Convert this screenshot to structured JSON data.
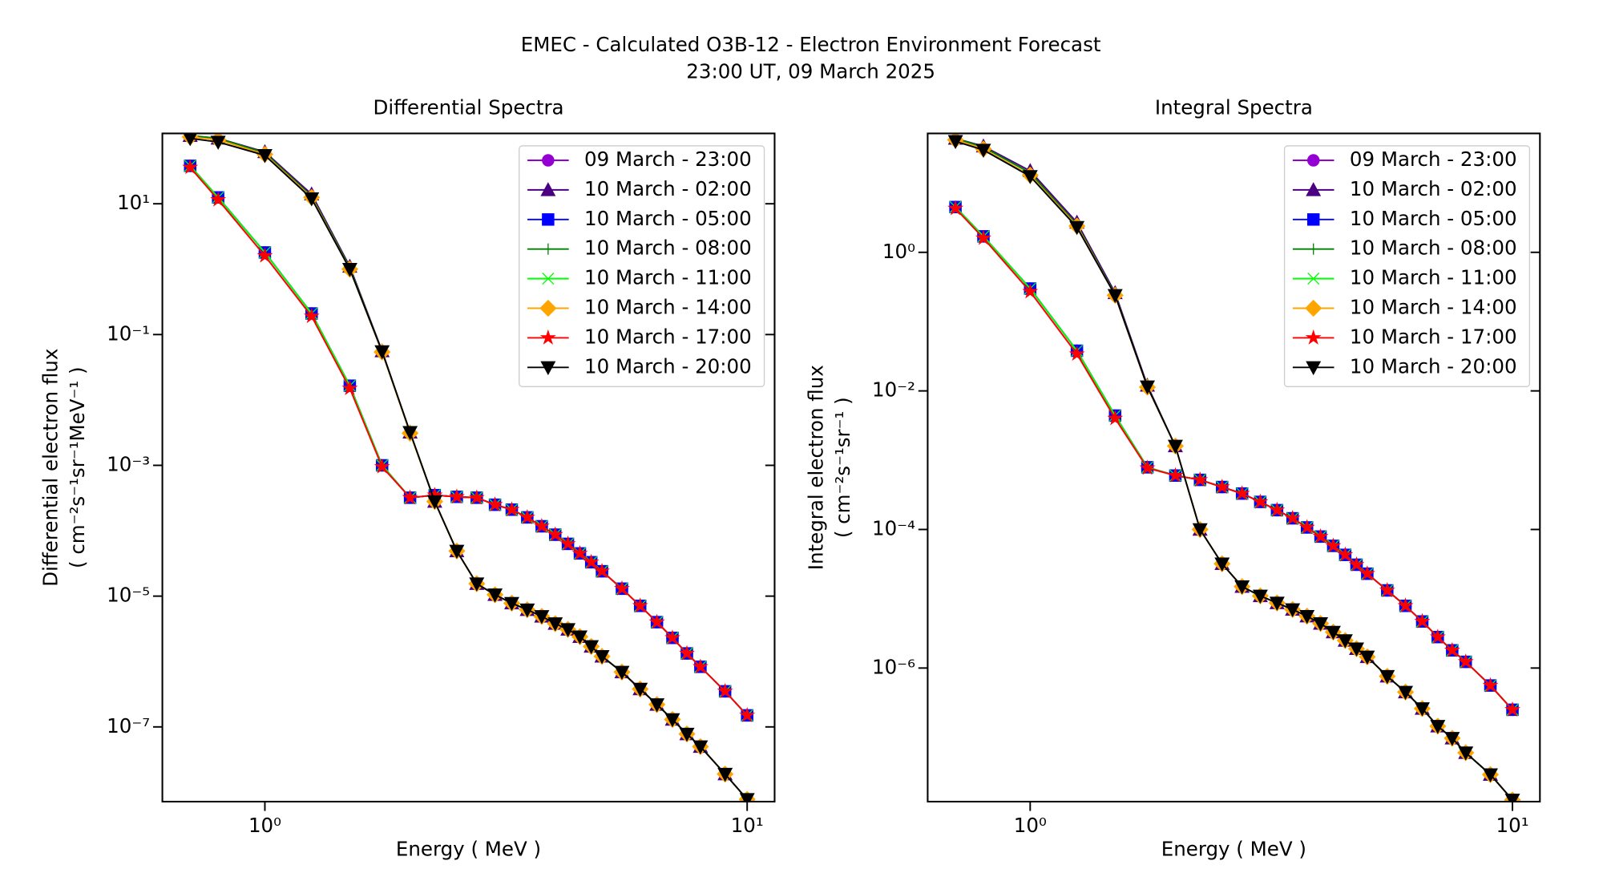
{
  "title": "EMEC - Calculated O3B-12 - Electron Environment Forecast",
  "subtitle": "23:00 UT, 09 March 2025",
  "chart_data": [
    {
      "type": "line",
      "title": "Differential Spectra",
      "xlabel": "Energy ( MeV )",
      "ylabel": [
        "Differential electron flux",
        "( cm⁻²s⁻¹sr⁻¹MeV⁻¹ )"
      ],
      "xscale": "log",
      "yscale": "log",
      "legend": "upper right",
      "xlim": [
        0.613,
        11.4
      ],
      "ylim": [
        7.2e-09,
        119
      ],
      "xticks": [
        {
          "value": 1,
          "label": "10⁰"
        },
        {
          "value": 10,
          "label": "10¹"
        }
      ],
      "yticks": [
        {
          "value": 10,
          "label": "10¹"
        },
        {
          "value": 0.1,
          "label": "10⁻¹"
        },
        {
          "value": 0.001,
          "label": "10⁻³"
        },
        {
          "value": 1e-05,
          "label": "10⁻⁵"
        },
        {
          "value": 1e-07,
          "label": "10⁻⁷"
        }
      ],
      "x": [
        0.7,
        0.8,
        1.0,
        1.25,
        1.5,
        1.75,
        2.0,
        2.25,
        2.5,
        2.75,
        3.0,
        3.25,
        3.5,
        3.75,
        4.0,
        4.25,
        4.5,
        4.75,
        5.0,
        5.5,
        6.0,
        6.5,
        7.0,
        7.5,
        8.0,
        9.0,
        10.0
      ],
      "series": [
        {
          "name": "09 March - 23:00",
          "color": "#9400d3",
          "marker": "circle",
          "values": [
            38,
            12.5,
            1.8,
            0.21,
            0.0165,
            0.001,
            0.00032,
            0.00035,
            0.00033,
            0.00032,
            0.00025,
            0.00021,
            0.00016,
            0.000117,
            8.7e-05,
            6.3e-05,
            4.5e-05,
            3.3e-05,
            2.4e-05,
            1.3e-05,
            7.1e-06,
            4e-06,
            2.3e-06,
            1.33e-06,
            8.3e-07,
            3.5e-07,
            1.5e-07
          ]
        },
        {
          "name": "10 March - 02:00",
          "color": "#4b0082",
          "marker": "triangle-up",
          "values": [
            110,
            100,
            62,
            14,
            1.1,
            0.056,
            0.0032,
            0.00028,
            4.9e-05,
            1.55e-05,
            1.05e-05,
            7.8e-06,
            6.2e-06,
            4.9e-06,
            3.8e-06,
            3.1e-06,
            2.4e-06,
            1.7e-06,
            1.2e-06,
            6.9e-07,
            3.8e-07,
            2.2e-07,
            1.3e-07,
            7.8e-08,
            5e-08,
            1.9e-08,
            7.8e-09
          ]
        },
        {
          "name": "10 March - 05:00",
          "color": "#0000ff",
          "marker": "square",
          "values": [
            38,
            12.5,
            1.8,
            0.21,
            0.0165,
            0.001,
            0.00032,
            0.00035,
            0.00033,
            0.00032,
            0.00025,
            0.00021,
            0.00016,
            0.000117,
            8.7e-05,
            6.3e-05,
            4.5e-05,
            3.3e-05,
            2.4e-05,
            1.3e-05,
            7.1e-06,
            4e-06,
            2.3e-06,
            1.33e-06,
            8.3e-07,
            3.5e-07,
            1.5e-07
          ]
        },
        {
          "name": "10 March - 08:00",
          "color": "#008000",
          "marker": "plus",
          "values": [
            110,
            100,
            60,
            13,
            1.05,
            0.055,
            0.0032,
            0.00028,
            4.9e-05,
            1.55e-05,
            1.05e-05,
            7.8e-06,
            6.2e-06,
            4.9e-06,
            3.8e-06,
            3.1e-06,
            2.4e-06,
            1.7e-06,
            1.2e-06,
            6.9e-07,
            3.8e-07,
            2.2e-07,
            1.3e-07,
            7.8e-08,
            5e-08,
            1.9e-08,
            7.8e-09
          ]
        },
        {
          "name": "10 March - 11:00",
          "color": "#00ff00",
          "marker": "x",
          "values": [
            38,
            12.5,
            1.8,
            0.21,
            0.0165,
            0.001,
            0.00032,
            0.00035,
            0.00033,
            0.00032,
            0.00025,
            0.00021,
            0.00016,
            0.000117,
            8.7e-05,
            6.3e-05,
            4.5e-05,
            3.3e-05,
            2.4e-05,
            1.3e-05,
            7.1e-06,
            4e-06,
            2.3e-06,
            1.33e-06,
            8.3e-07,
            3.5e-07,
            1.5e-07
          ]
        },
        {
          "name": "10 March - 14:00",
          "color": "#ffa500",
          "marker": "diamond",
          "values": [
            105,
            95,
            57,
            12.5,
            1.0,
            0.054,
            0.0031,
            0.00028,
            4.9e-05,
            1.55e-05,
            1.05e-05,
            7.8e-06,
            6.2e-06,
            4.9e-06,
            3.8e-06,
            3.1e-06,
            2.4e-06,
            1.7e-06,
            1.2e-06,
            6.9e-07,
            3.8e-07,
            2.2e-07,
            1.3e-07,
            7.8e-08,
            5e-08,
            1.9e-08,
            7.8e-09
          ]
        },
        {
          "name": "10 March - 17:00",
          "color": "#ff0000",
          "marker": "star",
          "values": [
            36,
            11.5,
            1.6,
            0.19,
            0.015,
            0.00095,
            0.00032,
            0.00035,
            0.00033,
            0.00032,
            0.00025,
            0.00021,
            0.00016,
            0.000117,
            8.7e-05,
            6.3e-05,
            4.5e-05,
            3.3e-05,
            2.4e-05,
            1.3e-05,
            7.1e-06,
            4e-06,
            2.3e-06,
            1.33e-06,
            8.3e-07,
            3.5e-07,
            1.5e-07
          ]
        },
        {
          "name": "10 March - 20:00",
          "color": "#000000",
          "marker": "triangle-down",
          "values": [
            100,
            88,
            55,
            12,
            1.0,
            0.055,
            0.0032,
            0.00028,
            4.9e-05,
            1.55e-05,
            1.05e-05,
            7.8e-06,
            6.2e-06,
            4.9e-06,
            3.8e-06,
            3.1e-06,
            2.4e-06,
            1.7e-06,
            1.2e-06,
            6.9e-07,
            3.8e-07,
            2.2e-07,
            1.3e-07,
            7.8e-08,
            5e-08,
            1.9e-08,
            7.8e-09
          ]
        }
      ]
    },
    {
      "type": "line",
      "title": "Integral Spectra",
      "xlabel": "Energy ( MeV )",
      "ylabel": [
        "Integral electron flux",
        "( cm⁻²s⁻¹sr⁻¹ )"
      ],
      "xscale": "log",
      "yscale": "log",
      "legend": "upper right",
      "xlim": [
        0.613,
        11.4
      ],
      "ylim": [
        1.18e-08,
        52
      ],
      "xticks": [
        {
          "value": 1,
          "label": "10⁰"
        },
        {
          "value": 10,
          "label": "10¹"
        }
      ],
      "yticks": [
        {
          "value": 1,
          "label": "10⁰"
        },
        {
          "value": 0.01,
          "label": "10⁻²"
        },
        {
          "value": 0.0001,
          "label": "10⁻⁴"
        },
        {
          "value": 1e-06,
          "label": "10⁻⁶"
        }
      ],
      "x": [
        0.7,
        0.8,
        1.0,
        1.25,
        1.5,
        1.75,
        2.0,
        2.25,
        2.5,
        2.75,
        3.0,
        3.25,
        3.5,
        3.75,
        4.0,
        4.25,
        4.5,
        4.75,
        5.0,
        5.5,
        6.0,
        6.5,
        7.0,
        7.5,
        8.0,
        9.0,
        10.0
      ],
      "series": [
        {
          "name": "09 March - 23:00",
          "color": "#9400d3",
          "marker": "circle",
          "values": [
            4.5,
            1.7,
            0.3,
            0.038,
            0.0044,
            0.00079,
            0.0006,
            0.00052,
            0.00041,
            0.00033,
            0.00025,
            0.00019,
            0.000145,
            0.000107,
            7.9e-05,
            5.8e-05,
            4.3e-05,
            3.1e-05,
            2.3e-05,
            1.32e-05,
            7.9e-06,
            4.7e-06,
            2.8e-06,
            1.8e-06,
            1.23e-06,
            5.6e-07,
            2.5e-07
          ]
        },
        {
          "name": "10 March - 02:00",
          "color": "#4b0082",
          "marker": "triangle-up",
          "values": [
            44,
            34,
            15,
            2.7,
            0.26,
            0.012,
            0.0016,
            0.0001,
            3.2e-05,
            1.5e-05,
            1.1e-05,
            8.7e-06,
            7e-06,
            5.6e-06,
            4.4e-06,
            3.3e-06,
            2.5e-06,
            1.9e-06,
            1.45e-06,
            7.6e-07,
            4.5e-07,
            2.6e-07,
            1.45e-07,
            9.7e-08,
            6e-08,
            2.9e-08,
            1.25e-08
          ]
        },
        {
          "name": "10 March - 05:00",
          "color": "#0000ff",
          "marker": "square",
          "values": [
            4.5,
            1.7,
            0.3,
            0.038,
            0.0044,
            0.00079,
            0.0006,
            0.00052,
            0.00041,
            0.00033,
            0.00025,
            0.00019,
            0.000145,
            0.000107,
            7.9e-05,
            5.8e-05,
            4.3e-05,
            3.1e-05,
            2.3e-05,
            1.32e-05,
            7.9e-06,
            4.7e-06,
            2.8e-06,
            1.8e-06,
            1.23e-06,
            5.6e-07,
            2.5e-07
          ]
        },
        {
          "name": "10 March - 08:00",
          "color": "#008000",
          "marker": "plus",
          "values": [
            44,
            33,
            14,
            2.5,
            0.245,
            0.0115,
            0.0016,
            0.0001,
            3.2e-05,
            1.5e-05,
            1.1e-05,
            8.7e-06,
            7e-06,
            5.6e-06,
            4.4e-06,
            3.3e-06,
            2.5e-06,
            1.9e-06,
            1.45e-06,
            7.6e-07,
            4.5e-07,
            2.6e-07,
            1.45e-07,
            9.7e-08,
            6e-08,
            2.9e-08,
            1.25e-08
          ]
        },
        {
          "name": "10 March - 11:00",
          "color": "#00ff00",
          "marker": "x",
          "values": [
            4.5,
            1.7,
            0.3,
            0.038,
            0.0044,
            0.00079,
            0.0006,
            0.00052,
            0.00041,
            0.00033,
            0.00025,
            0.00019,
            0.000145,
            0.000107,
            7.9e-05,
            5.8e-05,
            4.3e-05,
            3.1e-05,
            2.3e-05,
            1.32e-05,
            7.9e-06,
            4.7e-06,
            2.8e-06,
            1.8e-06,
            1.23e-06,
            5.6e-07,
            2.5e-07
          ]
        },
        {
          "name": "10 March - 14:00",
          "color": "#ffa500",
          "marker": "diamond",
          "values": [
            42,
            31,
            13,
            2.4,
            0.24,
            0.0113,
            0.0016,
            0.0001,
            3.2e-05,
            1.5e-05,
            1.1e-05,
            8.7e-06,
            7e-06,
            5.6e-06,
            4.4e-06,
            3.3e-06,
            2.5e-06,
            1.9e-06,
            1.45e-06,
            7.6e-07,
            4.5e-07,
            2.6e-07,
            1.45e-07,
            9.7e-08,
            6e-08,
            2.9e-08,
            1.25e-08
          ]
        },
        {
          "name": "10 March - 17:00",
          "color": "#ff0000",
          "marker": "star",
          "values": [
            4.3,
            1.6,
            0.27,
            0.034,
            0.004,
            0.00077,
            0.0006,
            0.00052,
            0.00041,
            0.00033,
            0.00025,
            0.00019,
            0.000145,
            0.000107,
            7.9e-05,
            5.8e-05,
            4.3e-05,
            3.1e-05,
            2.3e-05,
            1.32e-05,
            7.9e-06,
            4.7e-06,
            2.8e-06,
            1.8e-06,
            1.23e-06,
            5.6e-07,
            2.5e-07
          ]
        },
        {
          "name": "10 March - 20:00",
          "color": "#000000",
          "marker": "triangle-down",
          "values": [
            40,
            30,
            12.5,
            2.3,
            0.24,
            0.0115,
            0.0016,
            0.0001,
            3.2e-05,
            1.5e-05,
            1.1e-05,
            8.7e-06,
            7e-06,
            5.6e-06,
            4.4e-06,
            3.3e-06,
            2.5e-06,
            1.9e-06,
            1.45e-06,
            7.6e-07,
            4.5e-07,
            2.6e-07,
            1.45e-07,
            9.7e-08,
            6e-08,
            2.9e-08,
            1.25e-08
          ]
        }
      ]
    }
  ]
}
